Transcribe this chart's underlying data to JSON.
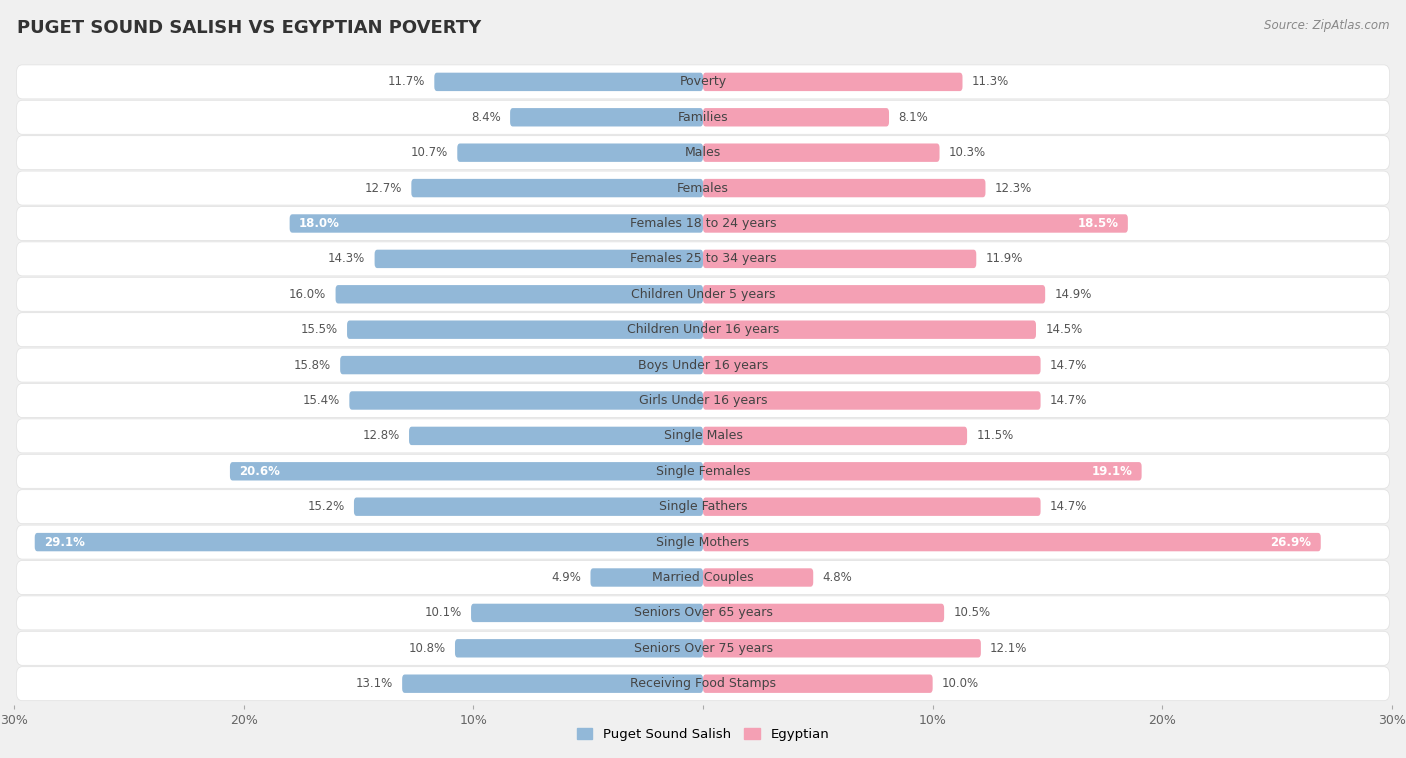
{
  "title": "PUGET SOUND SALISH VS EGYPTIAN POVERTY",
  "source": "Source: ZipAtlas.com",
  "categories": [
    "Poverty",
    "Families",
    "Males",
    "Females",
    "Females 18 to 24 years",
    "Females 25 to 34 years",
    "Children Under 5 years",
    "Children Under 16 years",
    "Boys Under 16 years",
    "Girls Under 16 years",
    "Single Males",
    "Single Females",
    "Single Fathers",
    "Single Mothers",
    "Married Couples",
    "Seniors Over 65 years",
    "Seniors Over 75 years",
    "Receiving Food Stamps"
  ],
  "left_values": [
    11.7,
    8.4,
    10.7,
    12.7,
    18.0,
    14.3,
    16.0,
    15.5,
    15.8,
    15.4,
    12.8,
    20.6,
    15.2,
    29.1,
    4.9,
    10.1,
    10.8,
    13.1
  ],
  "right_values": [
    11.3,
    8.1,
    10.3,
    12.3,
    18.5,
    11.9,
    14.9,
    14.5,
    14.7,
    14.7,
    11.5,
    19.1,
    14.7,
    26.9,
    4.8,
    10.5,
    12.1,
    10.0
  ],
  "left_color": "#92b8d8",
  "right_color": "#f4a0b4",
  "left_label": "Puget Sound Salish",
  "right_label": "Egyptian",
  "axis_max": 30.0,
  "background_color": "#f0f0f0",
  "row_bg_color": "#ffffff",
  "sep_color": "#e0e0e0",
  "label_fontsize": 9,
  "value_fontsize": 8.5,
  "title_fontsize": 13,
  "white_label_threshold": 17.5
}
